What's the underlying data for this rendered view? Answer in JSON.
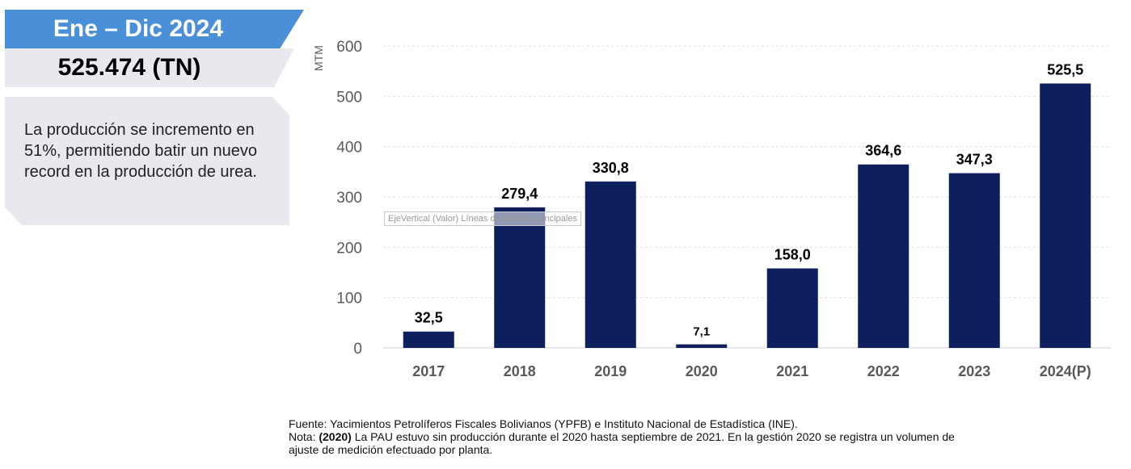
{
  "summary": {
    "period_label": "Ene – Dic 2024",
    "total_value": "525.474 (TN)",
    "note": "La producción se incremento en 51%, permitiendo batir un nuevo record en la producción de urea."
  },
  "tooltip_text": "EjeVertical (Valor) Líneas de división principales",
  "footnote": {
    "source": "Fuente: Yacimientos Petrolíferos Fiscales Bolivianos (YPFB) e Instituto Nacional de Estadística (INE).",
    "note_prefix": "Nota: ",
    "note_bold": "(2020)",
    "note_text": " La PAU estuvo sin producción durante el 2020 hasta septiembre de 2021. En la gestión 2020 se registra un volumen de ajuste de medición efectuado por planta."
  },
  "colors": {
    "bar": "#0d1f5c",
    "banner": "#4a90d9",
    "panel": "#e7e9ee"
  },
  "chart_data": {
    "type": "bar",
    "ylabel": "MTM",
    "ylim": [
      0,
      600
    ],
    "yticks": [
      0,
      100,
      200,
      300,
      400,
      500,
      600
    ],
    "categories": [
      "2017",
      "2018",
      "2019",
      "2020",
      "2021",
      "2022",
      "2023",
      "2024(P)"
    ],
    "values": [
      32.5,
      279.4,
      330.8,
      7.1,
      158.0,
      364.6,
      347.3,
      525.5
    ],
    "value_labels": [
      "32,5",
      "279,4",
      "330,8",
      "7,1",
      "158,0",
      "364,6",
      "347,3",
      "525,5"
    ],
    "grid": true
  }
}
